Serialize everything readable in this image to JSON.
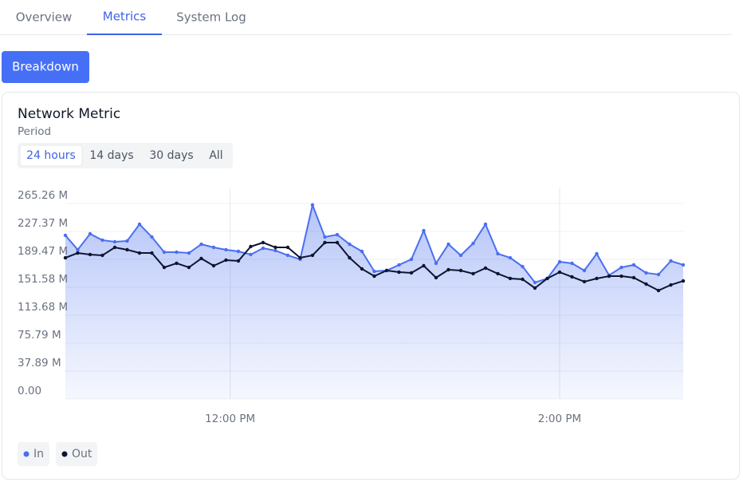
{
  "tabs": [
    "Overview",
    "Metrics",
    "System Log"
  ],
  "button": "Breakdown",
  "card": {
    "title": "Network Metric",
    "period_label": "Period",
    "periods": [
      "24 hours",
      "14 days",
      "30 days",
      "All"
    ]
  },
  "chart_data": {
    "type": "area",
    "x": [
      "11:00:00",
      "11:04:30",
      "11:09:00",
      "11:13:30",
      "11:18:00",
      "11:22:30",
      "11:27:00",
      "11:31:30",
      "11:36:00",
      "11:40:30",
      "11:45:00",
      "11:49:30",
      "11:54:00",
      "11:58:30",
      "12:03:00",
      "12:07:30",
      "12:12:00",
      "12:16:30",
      "12:21:00",
      "12:25:30",
      "12:30:00",
      "12:34:30",
      "12:39:00",
      "12:43:30",
      "12:48:00",
      "12:52:30",
      "12:57:00",
      "13:01:30",
      "13:06:00",
      "13:10:30",
      "13:15:00",
      "13:19:30",
      "13:24:00",
      "13:28:30",
      "13:33:00",
      "13:37:30",
      "13:42:00",
      "13:46:30",
      "13:51:00",
      "13:55:30",
      "14:00:00",
      "14:04:30",
      "14:09:00",
      "14:13:30",
      "14:18:00",
      "14:22:30",
      "14:27:00",
      "14:31:30",
      "14:36:00",
      "14:40:30",
      "14:45:00"
    ],
    "series": [
      {
        "name": "In",
        "color": "#4a6ff0",
        "values": [
          222.0,
          202.5,
          224.1,
          215.5,
          213.3,
          214.4,
          237.1,
          219.8,
          199.2,
          199.2,
          198.1,
          210.0,
          205.7,
          202.5,
          200.3,
          196.0,
          204.6,
          201.4,
          194.9,
          189.5,
          263.1,
          219.8,
          223.0,
          210.0,
          200.3,
          173.2,
          174.3,
          181.9,
          189.5,
          228.4,
          184.1,
          210.0,
          194.9,
          211.1,
          237.1,
          197.1,
          191.6,
          179.7,
          158.1,
          163.5,
          186.2,
          184.1,
          174.3,
          197.1,
          167.8,
          178.6,
          181.9,
          171.1,
          168.9,
          187.3,
          181.9
        ]
      },
      {
        "name": "Out",
        "color": "#0d1530",
        "values": [
          191.6,
          198.1,
          196.0,
          194.9,
          205.7,
          202.5,
          198.1,
          198.1,
          178.6,
          184.1,
          178.6,
          190.6,
          180.8,
          188.4,
          187.3,
          206.8,
          212.2,
          205.7,
          205.7,
          191.6,
          194.9,
          212.2,
          212.2,
          191.6,
          176.5,
          166.7,
          174.3,
          172.1,
          171.1,
          180.8,
          164.6,
          175.4,
          174.3,
          170.0,
          177.6,
          170.0,
          163.5,
          162.4,
          150.5,
          163.5,
          172.1,
          165.7,
          159.2,
          163.5,
          166.7,
          166.7,
          164.6,
          155.9,
          147.2,
          154.8,
          160.2
        ]
      }
    ],
    "xlim": [
      "11:00:00",
      "14:45:00"
    ],
    "xticks": [
      {
        "value": "12:00:00",
        "label": "12:00 PM"
      },
      {
        "value": "14:00:00",
        "label": "2:00 PM"
      }
    ],
    "ylim": [
      0,
      286.9
    ],
    "yticks": [
      {
        "value": 0,
        "label": "0.00"
      },
      {
        "value": 37.89,
        "label": "37.89 M"
      },
      {
        "value": 75.79,
        "label": "75.79 M"
      },
      {
        "value": 113.68,
        "label": "113.68 M"
      },
      {
        "value": 151.58,
        "label": "151.58 M"
      },
      {
        "value": 189.47,
        "label": "189.47 M"
      },
      {
        "value": 227.37,
        "label": "227.37 M"
      },
      {
        "value": 265.26,
        "label": "265.26 M"
      }
    ],
    "grid": true
  }
}
